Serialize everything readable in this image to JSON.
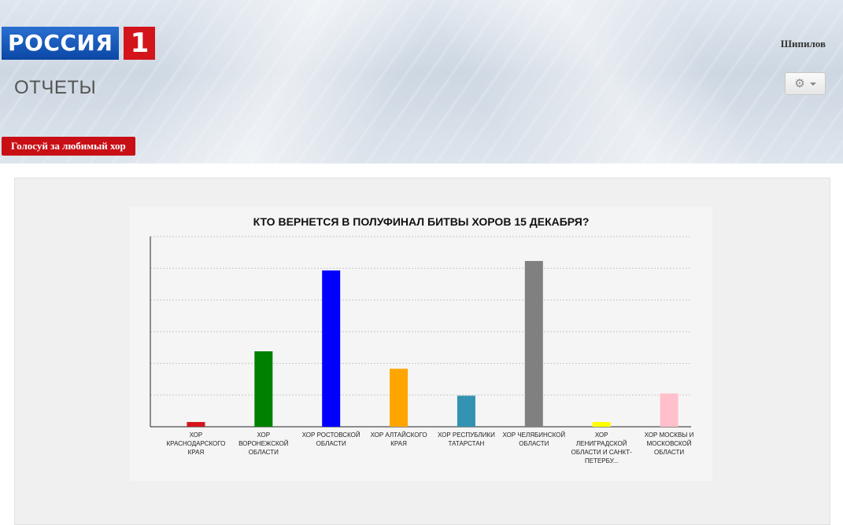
{
  "header": {
    "logo_text": "РОССИЯ",
    "logo_number": "1",
    "user_name": "Шипилов",
    "page_title": "ОТЧЕТЫ",
    "settings_icon": "gear-icon",
    "tab_label": "Голосуй за любимый хор"
  },
  "colors": {
    "brand_blue": "#0b47a6",
    "brand_red": "#d4141b",
    "tab_red": "#c90f16"
  },
  "chart_data": {
    "type": "bar",
    "title": "КТО ВЕРНЕТСЯ В ПОЛУФИНАЛ БИТВЫ ХОРОВ 15 ДЕКАБРЯ?",
    "xlabel": "",
    "ylabel": "",
    "grid": true,
    "ylim": [
      0,
      6
    ],
    "categories": [
      "ХОР КРАСНОДАРСКОГО КРАЯ",
      "ХОР ВОРОНЕЖСКОЙ ОБЛАСТИ",
      "ХОР РОСТОВСКОЙ ОБЛАСТИ",
      "ХОР АЛТАЙСКОГО КРАЯ",
      "ХОР РЕСПУБЛИКИ ТАТАРСТАН",
      "ХОР ЧЕЛЯБИНСКОЙ ОБЛАСТИ",
      "ХОР ЛЕНИГРАДСКОЙ ОБЛАСТИ И САНКТ-ПЕТЕРБУ...",
      "ХОР МОСКВЫ И МОСКОВСКОЙ ОБЛАСТИ"
    ],
    "values": [
      0.15,
      2.38,
      4.93,
      1.83,
      0.98,
      5.23,
      0.15,
      1.05
    ],
    "bar_colors": [
      "#d4141b",
      "#008000",
      "#0000ff",
      "#ffa500",
      "#3393b0",
      "#808080",
      "#ffff00",
      "#ffc0cb"
    ]
  }
}
